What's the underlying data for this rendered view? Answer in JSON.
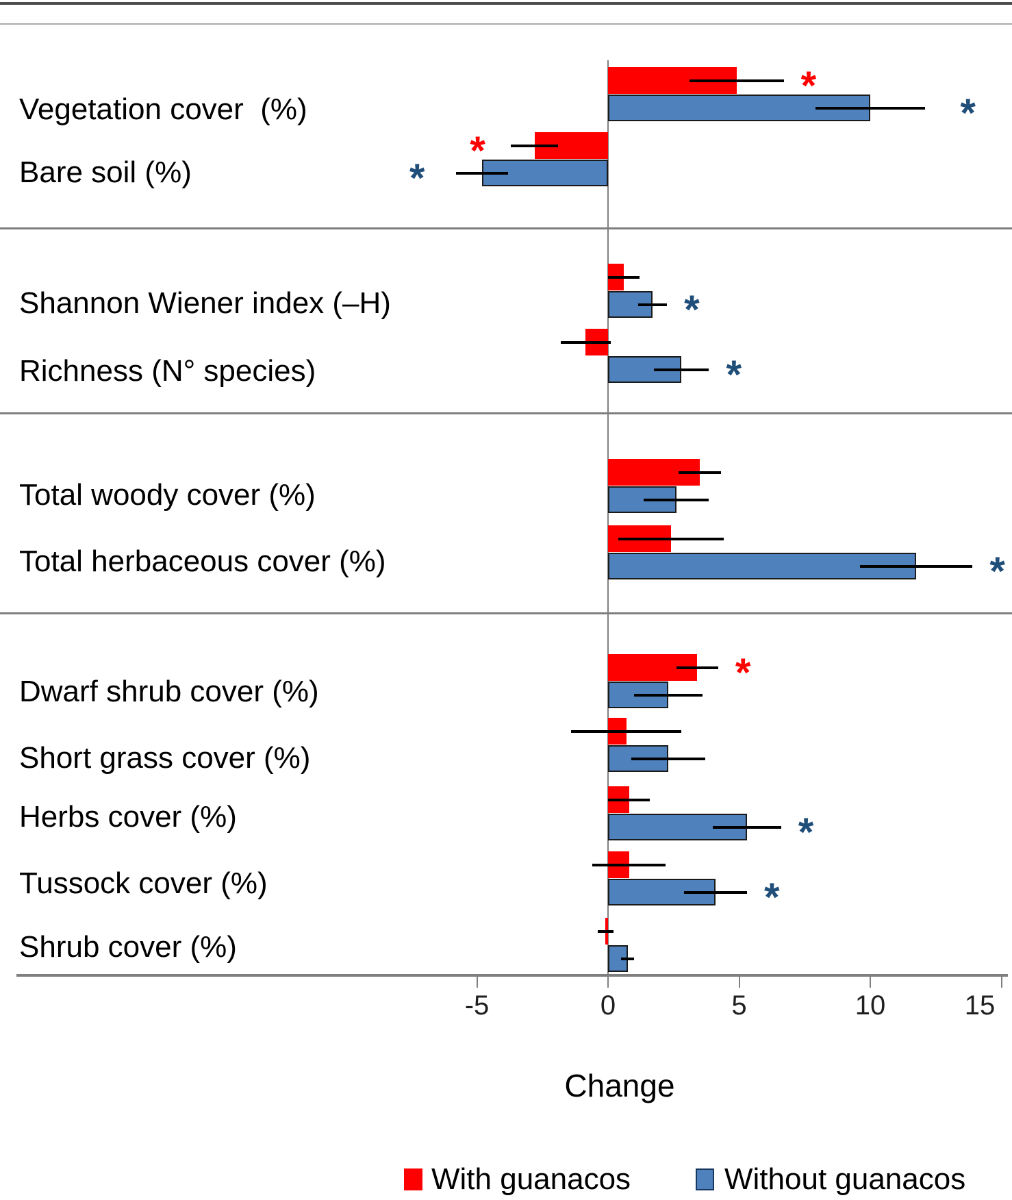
{
  "figure": {
    "axis_title": "Change",
    "legend": [
      {
        "label": "With guanacos",
        "color": "#FF0000"
      },
      {
        "label": "Without guanacos",
        "color": "#4F81BD"
      }
    ]
  },
  "chart_data": {
    "type": "bar",
    "orientation": "horizontal",
    "title": "",
    "xlabel": "Change",
    "ylabel": "",
    "xlim": [
      -5,
      15
    ],
    "x_ticks": [
      "-5",
      "0",
      "5",
      "10",
      "15"
    ],
    "x_tick_values": [
      -5,
      0,
      5,
      10,
      15
    ],
    "grid": false,
    "legend_position": "bottom",
    "significance_marker": "*",
    "error_bars": true,
    "series_names": [
      "With guanacos",
      "Without guanacos"
    ],
    "colors": {
      "with_guanacos": "#FF0000",
      "without_guanacos": "#4F81BD",
      "significance_with": "#FF0000",
      "significance_without": "#1F4E79",
      "axis_gray": "#7F7F7F"
    },
    "rows": [
      {
        "section": 1,
        "label": "Vegetation cover  (%)",
        "with": {
          "value": 4.9,
          "error": 1.8,
          "significant": true
        },
        "without": {
          "value": 10.0,
          "error": 2.1,
          "significant": true
        }
      },
      {
        "section": 1,
        "label": "Bare soil (%)",
        "with": {
          "value": -2.8,
          "error": 0.9,
          "significant": true
        },
        "without": {
          "value": -4.8,
          "error": 1.0,
          "significant": true
        }
      },
      {
        "section": 2,
        "label": "Shannon Wiener index (–H)",
        "with": {
          "value": 0.6,
          "error": 0.6,
          "significant": false
        },
        "without": {
          "value": 1.7,
          "error": 0.55,
          "significant": true
        }
      },
      {
        "section": 2,
        "label": "Richness (N° species)",
        "with": {
          "value": -0.85,
          "error": 0.95,
          "significant": false
        },
        "without": {
          "value": 2.8,
          "error": 1.05,
          "significant": true
        }
      },
      {
        "section": 3,
        "label": "Total woody cover (%)",
        "with": {
          "value": 3.5,
          "error": 0.8,
          "significant": false
        },
        "without": {
          "value": 2.6,
          "error": 1.25,
          "significant": false
        }
      },
      {
        "section": 3,
        "label": "Total herbaceous cover (%)",
        "with": {
          "value": 2.4,
          "error": 2.0,
          "significant": false
        },
        "without": {
          "value": 11.75,
          "error": 2.15,
          "significant": true
        }
      },
      {
        "section": 4,
        "label": "Dwarf shrub cover (%)",
        "with": {
          "value": 3.4,
          "error": 0.8,
          "significant": true
        },
        "without": {
          "value": 2.3,
          "error": 1.3,
          "significant": false
        }
      },
      {
        "section": 4,
        "label": "Short grass cover (%)",
        "with": {
          "value": 0.7,
          "error": 2.1,
          "significant": false
        },
        "without": {
          "value": 2.3,
          "error": 1.4,
          "significant": false
        }
      },
      {
        "section": 4,
        "label": "Herbs cover (%)",
        "with": {
          "value": 0.8,
          "error": 0.8,
          "significant": false
        },
        "without": {
          "value": 5.3,
          "error": 1.3,
          "significant": true
        }
      },
      {
        "section": 4,
        "label": "Tussock cover (%)",
        "with": {
          "value": 0.8,
          "error": 1.4,
          "significant": false
        },
        "without": {
          "value": 4.1,
          "error": 1.2,
          "significant": true
        }
      },
      {
        "section": 4,
        "label": "Shrub cover (%)",
        "with": {
          "value": -0.1,
          "error": 0.3,
          "significant": false
        },
        "without": {
          "value": 0.75,
          "error": 0.25,
          "significant": false
        }
      }
    ]
  }
}
